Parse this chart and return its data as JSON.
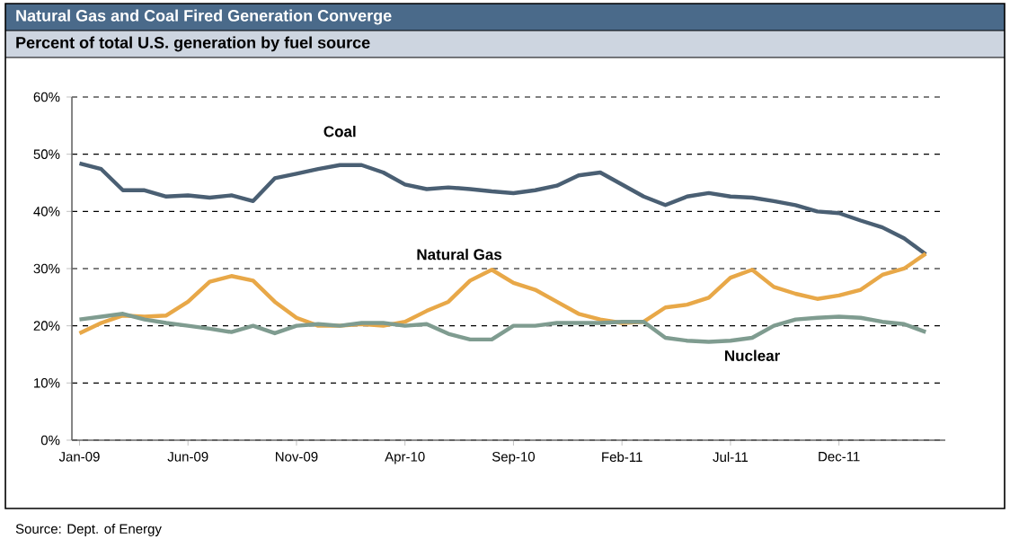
{
  "chart_data": {
    "type": "line",
    "title": "Natural Gas and Coal Fired Generation Converge",
    "subtitle": "Percent of total U.S. generation by fuel source",
    "categories": [
      "Jan-09",
      null,
      null,
      null,
      null,
      "Jun-09",
      null,
      null,
      null,
      null,
      "Nov-09",
      null,
      null,
      null,
      null,
      "Apr-10",
      null,
      null,
      null,
      null,
      "Sep-10",
      null,
      null,
      null,
      null,
      "Feb-11",
      null,
      null,
      null,
      null,
      "Jul-11",
      null,
      null,
      null,
      null,
      "Dec-11",
      null,
      null,
      null,
      null
    ],
    "series": [
      {
        "name": "Coal",
        "color": "#4a5f73",
        "values": [
          48.4,
          47.4,
          43.7,
          43.7,
          42.6,
          42.8,
          42.4,
          42.8,
          41.8,
          45.8,
          46.6,
          47.4,
          48.1,
          48.1,
          46.8,
          44.7,
          43.9,
          44.2,
          43.9,
          43.5,
          43.2,
          43.7,
          44.5,
          46.3,
          46.8,
          44.7,
          42.6,
          41.1,
          42.6,
          43.2,
          42.6,
          42.4,
          41.8,
          41.1,
          40.0,
          39.7,
          38.4,
          37.2,
          35.3,
          32.5
        ]
      },
      {
        "name": "Natural Gas",
        "color": "#e8a848",
        "values": [
          18.7,
          20.5,
          21.8,
          21.6,
          21.8,
          24.2,
          27.7,
          28.7,
          27.9,
          24.2,
          21.4,
          20.0,
          20.0,
          20.3,
          20.0,
          20.7,
          22.6,
          24.2,
          27.9,
          29.8,
          27.5,
          26.3,
          24.2,
          22.1,
          21.1,
          20.5,
          20.7,
          23.2,
          23.7,
          24.9,
          28.4,
          29.8,
          26.8,
          25.6,
          24.7,
          25.3,
          26.3,
          28.9,
          30.0,
          32.6
        ]
      },
      {
        "name": "Nuclear",
        "color": "#7f9c90",
        "values": [
          21.1,
          21.6,
          22.1,
          21.1,
          20.5,
          20.0,
          19.5,
          18.9,
          20.0,
          18.7,
          20.0,
          20.3,
          20.0,
          20.5,
          20.5,
          20.0,
          20.3,
          18.6,
          17.6,
          17.6,
          20.0,
          20.0,
          20.5,
          20.5,
          20.5,
          20.7,
          20.7,
          17.9,
          17.4,
          17.2,
          17.4,
          17.9,
          20.0,
          21.1,
          21.4,
          21.6,
          21.4,
          20.7,
          20.3,
          18.9
        ]
      }
    ],
    "ylim": [
      0,
      60
    ],
    "yticks": [
      {
        "value": 0,
        "label": "0%"
      },
      {
        "value": 10,
        "label": "10%"
      },
      {
        "value": 20,
        "label": "20%"
      },
      {
        "value": 30,
        "label": "30%"
      },
      {
        "value": 40,
        "label": "40%"
      },
      {
        "value": 50,
        "label": "50%"
      },
      {
        "value": 60,
        "label": "60%"
      }
    ],
    "grid": "y",
    "annotations": [
      "Source: Dept. of Energy"
    ]
  }
}
